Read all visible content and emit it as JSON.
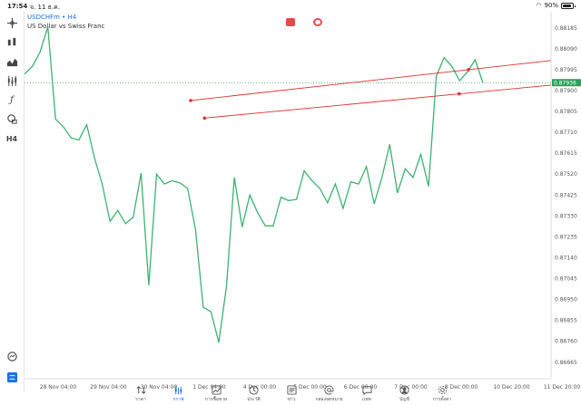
{
  "status": {
    "time": "17:54",
    "date": "จ. 11 ธ.ค.",
    "battery": "90%",
    "battery_level": 0.9
  },
  "header": {
    "symbol": "USDCHFm • H4",
    "description": "US Dollar vs Swiss Franc"
  },
  "colors": {
    "line": "#3cb371",
    "trendline": "#e03030",
    "bid_line": "#2e9e5a",
    "accent": "#1a73e8"
  },
  "toolbar": {
    "icons": [
      "crosshair-icon",
      "bar-chart-icon",
      "indicators-icon",
      "candles-icon",
      "function-icon",
      "shapes-icon"
    ],
    "timeframe": "H4"
  },
  "chart_data": {
    "type": "line",
    "ylim": [
      0.8659,
      0.8825
    ],
    "y_ticks": [
      "0.88185",
      "0.88090",
      "0.87995",
      "0.87900",
      "0.87805",
      "0.87710",
      "0.87615",
      "0.87520",
      "0.87425",
      "0.87330",
      "0.87235",
      "0.87140",
      "0.87045",
      "0.86950",
      "0.86855",
      "0.86760",
      "0.86665"
    ],
    "x_ticks": [
      "28 Nov 04:00",
      "29 Nov 04:00",
      "30 Nov 04:00",
      "1 Dec 04:00",
      "4 Dec 00:00",
      "5 Dec 00:00",
      "6 Dec 00:00",
      "7 Dec 00:00",
      "8 Dec 00:00",
      "10 Dec 20:00",
      "11 Dec 20:00"
    ],
    "current_price": "0.87936",
    "current_value": 0.87936,
    "series": [
      {
        "values": [
          0.87975,
          0.8801,
          0.88075,
          0.8819,
          0.8777,
          0.87735,
          0.87685,
          0.87675,
          0.87745,
          0.87595,
          0.87475,
          0.87305,
          0.87355,
          0.87295,
          0.87325,
          0.87525,
          0.87015,
          0.8752,
          0.87475,
          0.8749,
          0.8748,
          0.87455,
          0.8727,
          0.86915,
          0.86895,
          0.86755,
          0.8701,
          0.87505,
          0.8728,
          0.87425,
          0.87345,
          0.87285,
          0.87285,
          0.87415,
          0.874,
          0.87405,
          0.87535,
          0.8749,
          0.87455,
          0.8739,
          0.87475,
          0.87365,
          0.87485,
          0.87475,
          0.87555,
          0.87385,
          0.87505,
          0.87655,
          0.87435,
          0.87545,
          0.87505,
          0.8761,
          0.87465,
          0.87965,
          0.8805,
          0.8801,
          0.87945,
          0.87985,
          0.8804,
          0.87935
        ]
      }
    ],
    "trendlines": [
      {
        "points": [
          [
            3.0,
            0.87855
          ],
          [
            9.0,
            0.87995
          ]
        ],
        "extends_right": true
      },
      {
        "points": [
          [
            3.3,
            0.87775
          ],
          [
            8.8,
            0.87885
          ]
        ],
        "extends_right": true
      }
    ]
  },
  "nav": [
    {
      "label": "ราคา",
      "icon": "quotes-icon",
      "active": false
    },
    {
      "label": "กราฟ",
      "icon": "chart-icon",
      "active": true
    },
    {
      "label": "การซื้อขาย",
      "icon": "trade-icon",
      "active": false
    },
    {
      "label": "ประวัติ",
      "icon": "history-icon",
      "active": false
    },
    {
      "label": "ข่าว",
      "icon": "news-icon",
      "active": false
    },
    {
      "label": "กล่องจดหมาย",
      "icon": "mail-icon",
      "active": false
    },
    {
      "label": "แชท",
      "icon": "chat-icon",
      "active": false
    },
    {
      "label": "บัญชี",
      "icon": "account-icon",
      "active": false
    },
    {
      "label": "การตั้งค่า",
      "icon": "settings-icon",
      "active": false
    }
  ]
}
